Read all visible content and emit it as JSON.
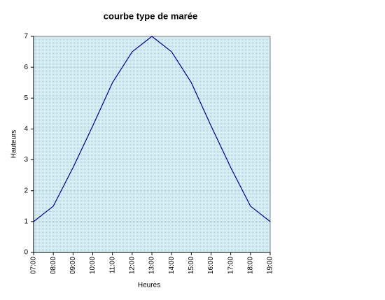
{
  "chart_data": {
    "type": "line",
    "title": "courbe type de marée",
    "x_label": "Heures",
    "y_label": "Hauteurs",
    "categories": [
      "07:00",
      "08:00",
      "09:00",
      "10:00",
      "11:00",
      "12:00",
      "13:00",
      "14:00",
      "15:00",
      "16:00",
      "17:00",
      "18:00",
      "19:00"
    ],
    "values": [
      1,
      1.5,
      2.75,
      4.1,
      5.5,
      6.5,
      7,
      6.5,
      5.5,
      4.1,
      2.75,
      1.5,
      1
    ],
    "color": "#000080",
    "ylim": [
      0,
      7
    ],
    "yticks": [
      0,
      1,
      2,
      3,
      4,
      5,
      6,
      7
    ],
    "grid": true
  }
}
